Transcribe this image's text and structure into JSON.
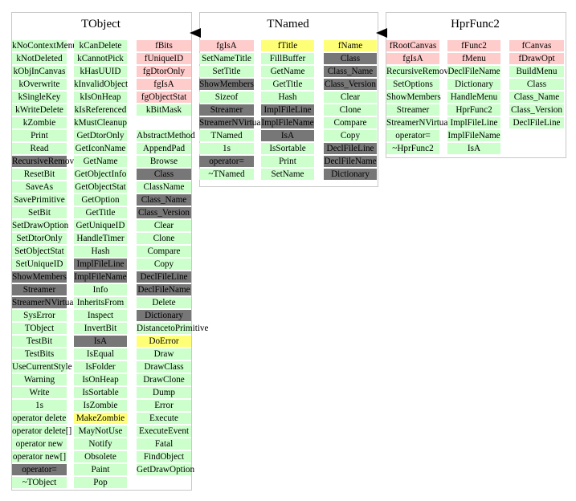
{
  "colors": {
    "member": "#ccffcc",
    "data": "#ffcccc",
    "highlight": "#ffff77",
    "inherited": "#777777"
  },
  "classes": [
    {
      "title": "TObject",
      "columns": [
        {
          "cells": [
            {
              "t": "kNoContextMenu",
              "c": "green"
            },
            {
              "t": "kNotDeleted",
              "c": "green"
            },
            {
              "t": "kObjInCanvas",
              "c": "green"
            },
            {
              "t": "kOverwrite",
              "c": "green"
            },
            {
              "t": "kSingleKey",
              "c": "green"
            },
            {
              "t": "kWriteDelete",
              "c": "green"
            },
            {
              "t": "kZombie",
              "c": "green"
            },
            {
              "t": "Print",
              "c": "green"
            },
            {
              "t": "Read",
              "c": "green"
            },
            {
              "t": "RecursiveRemove",
              "c": "dark"
            },
            {
              "t": "ResetBit",
              "c": "green"
            },
            {
              "t": "SaveAs",
              "c": "green"
            },
            {
              "t": "SavePrimitive",
              "c": "green"
            },
            {
              "t": "SetBit",
              "c": "green"
            },
            {
              "t": "SetDrawOption",
              "c": "green"
            },
            {
              "t": "SetDtorOnly",
              "c": "green"
            },
            {
              "t": "SetObjectStat",
              "c": "green"
            },
            {
              "t": "SetUniqueID",
              "c": "green"
            },
            {
              "t": "ShowMembers",
              "c": "dark"
            },
            {
              "t": "Streamer",
              "c": "dark"
            },
            {
              "t": "StreamerNVirtual",
              "c": "dark"
            },
            {
              "t": "SysError",
              "c": "green"
            },
            {
              "t": "TObject",
              "c": "green"
            },
            {
              "t": "TestBit",
              "c": "green"
            },
            {
              "t": "TestBits",
              "c": "green"
            },
            {
              "t": "UseCurrentStyle",
              "c": "green"
            },
            {
              "t": "Warning",
              "c": "green"
            },
            {
              "t": "Write",
              "c": "green"
            },
            {
              "t": "1s",
              "c": "green"
            },
            {
              "t": "operator delete",
              "c": "green"
            },
            {
              "t": "operator delete[]",
              "c": "green"
            },
            {
              "t": "operator new",
              "c": "green"
            },
            {
              "t": "operator new[]",
              "c": "green"
            },
            {
              "t": "operator=",
              "c": "dark"
            },
            {
              "t": "~TObject",
              "c": "green"
            }
          ]
        },
        {
          "cells": [
            {
              "t": "kCanDelete",
              "c": "green"
            },
            {
              "t": "kCannotPick",
              "c": "green"
            },
            {
              "t": "kHasUUID",
              "c": "green"
            },
            {
              "t": "kInvalidObject",
              "c": "green"
            },
            {
              "t": "kIsOnHeap",
              "c": "green"
            },
            {
              "t": "kIsReferenced",
              "c": "green"
            },
            {
              "t": "kMustCleanup",
              "c": "green"
            },
            {
              "t": "GetDtorOnly",
              "c": "green"
            },
            {
              "t": "GetIconName",
              "c": "green"
            },
            {
              "t": "GetName",
              "c": "green"
            },
            {
              "t": "GetObjectInfo",
              "c": "green"
            },
            {
              "t": "GetObjectStat",
              "c": "green"
            },
            {
              "t": "GetOption",
              "c": "green"
            },
            {
              "t": "GetTitle",
              "c": "green"
            },
            {
              "t": "GetUniqueID",
              "c": "green"
            },
            {
              "t": "HandleTimer",
              "c": "green"
            },
            {
              "t": "Hash",
              "c": "green"
            },
            {
              "t": "ImplFileLine",
              "c": "dark"
            },
            {
              "t": "ImplFileName",
              "c": "dark"
            },
            {
              "t": "Info",
              "c": "green"
            },
            {
              "t": "InheritsFrom",
              "c": "green"
            },
            {
              "t": "Inspect",
              "c": "green"
            },
            {
              "t": "InvertBit",
              "c": "green"
            },
            {
              "t": "IsA",
              "c": "dark"
            },
            {
              "t": "IsEqual",
              "c": "green"
            },
            {
              "t": "IsFolder",
              "c": "green"
            },
            {
              "t": "IsOnHeap",
              "c": "green"
            },
            {
              "t": "IsSortable",
              "c": "green"
            },
            {
              "t": "IsZombie",
              "c": "green"
            },
            {
              "t": "MakeZombie",
              "c": "yellow"
            },
            {
              "t": "MayNotUse",
              "c": "green"
            },
            {
              "t": "Notify",
              "c": "green"
            },
            {
              "t": "Obsolete",
              "c": "green"
            },
            {
              "t": "Paint",
              "c": "green"
            },
            {
              "t": "Pop",
              "c": "green"
            }
          ]
        },
        {
          "cells": [
            {
              "t": "fBits",
              "c": "pink"
            },
            {
              "t": "fUniqueID",
              "c": "pink"
            },
            {
              "t": "fgDtorOnly",
              "c": "pink"
            },
            {
              "t": "fgIsA",
              "c": "pink"
            },
            {
              "t": "fgObjectStat",
              "c": "pink"
            },
            {
              "t": "kBitMask",
              "c": "green"
            },
            {
              "t": "",
              "c": "none"
            },
            {
              "t": "AbstractMethod",
              "c": "green"
            },
            {
              "t": "AppendPad",
              "c": "green"
            },
            {
              "t": "Browse",
              "c": "green"
            },
            {
              "t": "Class",
              "c": "dark"
            },
            {
              "t": "ClassName",
              "c": "green"
            },
            {
              "t": "Class_Name",
              "c": "dark"
            },
            {
              "t": "Class_Version",
              "c": "dark"
            },
            {
              "t": "Clear",
              "c": "green"
            },
            {
              "t": "Clone",
              "c": "green"
            },
            {
              "t": "Compare",
              "c": "green"
            },
            {
              "t": "Copy",
              "c": "green"
            },
            {
              "t": "DeclFileLine",
              "c": "dark"
            },
            {
              "t": "DeclFileName",
              "c": "dark"
            },
            {
              "t": "Delete",
              "c": "green"
            },
            {
              "t": "Dictionary",
              "c": "dark"
            },
            {
              "t": "DistancetoPrimitive",
              "c": "green"
            },
            {
              "t": "DoError",
              "c": "yellow"
            },
            {
              "t": "Draw",
              "c": "green"
            },
            {
              "t": "DrawClass",
              "c": "green"
            },
            {
              "t": "DrawClone",
              "c": "green"
            },
            {
              "t": "Dump",
              "c": "green"
            },
            {
              "t": "Error",
              "c": "green"
            },
            {
              "t": "Execute",
              "c": "green"
            },
            {
              "t": "ExecuteEvent",
              "c": "green"
            },
            {
              "t": "Fatal",
              "c": "green"
            },
            {
              "t": "FindObject",
              "c": "green"
            },
            {
              "t": "GetDrawOption",
              "c": "green"
            }
          ]
        }
      ]
    },
    {
      "title": "TNamed",
      "columns": [
        {
          "cells": [
            {
              "t": "fgIsA",
              "c": "pink"
            },
            {
              "t": "SetNameTitle",
              "c": "green"
            },
            {
              "t": "SetTitle",
              "c": "green"
            },
            {
              "t": "ShowMembers",
              "c": "dark"
            },
            {
              "t": "Sizeof",
              "c": "green"
            },
            {
              "t": "Streamer",
              "c": "dark"
            },
            {
              "t": "StreamerNVirtual",
              "c": "dark"
            },
            {
              "t": "TNamed",
              "c": "green"
            },
            {
              "t": "1s",
              "c": "green"
            },
            {
              "t": "operator=",
              "c": "dark"
            },
            {
              "t": "~TNamed",
              "c": "green"
            }
          ]
        },
        {
          "cells": [
            {
              "t": "fTitle",
              "c": "yellow"
            },
            {
              "t": "FillBuffer",
              "c": "green"
            },
            {
              "t": "GetName",
              "c": "green"
            },
            {
              "t": "GetTitle",
              "c": "green"
            },
            {
              "t": "Hash",
              "c": "green"
            },
            {
              "t": "ImplFileLine",
              "c": "dark"
            },
            {
              "t": "ImplFileName",
              "c": "dark"
            },
            {
              "t": "IsA",
              "c": "dark"
            },
            {
              "t": "IsSortable",
              "c": "green"
            },
            {
              "t": "Print",
              "c": "green"
            },
            {
              "t": "SetName",
              "c": "green"
            }
          ]
        },
        {
          "cells": [
            {
              "t": "fName",
              "c": "yellow"
            },
            {
              "t": "Class",
              "c": "dark"
            },
            {
              "t": "Class_Name",
              "c": "dark"
            },
            {
              "t": "Class_Version",
              "c": "dark"
            },
            {
              "t": "Clear",
              "c": "green"
            },
            {
              "t": "Clone",
              "c": "green"
            },
            {
              "t": "Compare",
              "c": "green"
            },
            {
              "t": "Copy",
              "c": "green"
            },
            {
              "t": "DeclFileLine",
              "c": "dark"
            },
            {
              "t": "DeclFileName",
              "c": "dark"
            },
            {
              "t": "Dictionary",
              "c": "dark"
            }
          ]
        }
      ]
    },
    {
      "title": "HprFunc2",
      "columns": [
        {
          "cells": [
            {
              "t": "fRootCanvas",
              "c": "pink"
            },
            {
              "t": "fgIsA",
              "c": "pink"
            },
            {
              "t": "RecursiveRemove",
              "c": "green"
            },
            {
              "t": "SetOptions",
              "c": "green"
            },
            {
              "t": "ShowMembers",
              "c": "green"
            },
            {
              "t": "Streamer",
              "c": "green"
            },
            {
              "t": "StreamerNVirtual",
              "c": "green"
            },
            {
              "t": "operator=",
              "c": "green"
            },
            {
              "t": "~HprFunc2",
              "c": "green"
            }
          ]
        },
        {
          "cells": [
            {
              "t": "fFunc2",
              "c": "pink"
            },
            {
              "t": "fMenu",
              "c": "pink"
            },
            {
              "t": "DeclFileName",
              "c": "green"
            },
            {
              "t": "Dictionary",
              "c": "green"
            },
            {
              "t": "HandleMenu",
              "c": "green"
            },
            {
              "t": "HprFunc2",
              "c": "green"
            },
            {
              "t": "ImplFileLine",
              "c": "green"
            },
            {
              "t": "ImplFileName",
              "c": "green"
            },
            {
              "t": "IsA",
              "c": "green"
            }
          ]
        },
        {
          "cells": [
            {
              "t": "fCanvas",
              "c": "pink"
            },
            {
              "t": "fDrawOpt",
              "c": "pink"
            },
            {
              "t": "BuildMenu",
              "c": "green"
            },
            {
              "t": "Class",
              "c": "green"
            },
            {
              "t": "Class_Name",
              "c": "green"
            },
            {
              "t": "Class_Version",
              "c": "green"
            },
            {
              "t": "DeclFileLine",
              "c": "green"
            }
          ]
        }
      ]
    }
  ]
}
